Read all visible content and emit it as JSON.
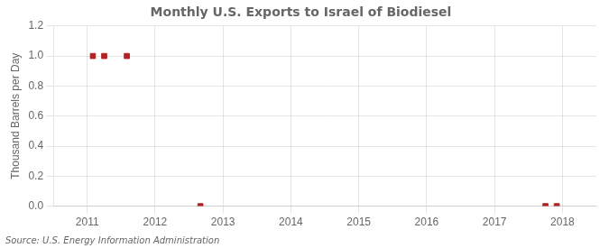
{
  "chart_data": {
    "type": "scatter",
    "title": "Monthly U.S. Exports to Israel of Biodiesel",
    "ylabel": "Thousand Barrels per Day",
    "annotations": [
      "Source: U.S. Energy Information Administration"
    ],
    "x": [
      2011.083,
      2011.25,
      2011.583,
      2012.667,
      2017.75,
      2017.917
    ],
    "values": [
      1.0,
      1.0,
      1.0,
      0.0,
      0.0,
      0.0
    ],
    "color": "#b22222",
    "marker": "square",
    "xlim": [
      2010.5,
      2018.5
    ],
    "xticks": [
      2011,
      2012,
      2013,
      2014,
      2015,
      2016,
      2017,
      2018
    ],
    "ylim": [
      0.0,
      1.2
    ],
    "yticks": [
      {
        "value": 0,
        "label": "0.0"
      },
      0.2,
      0.4,
      0.6,
      0.8,
      {
        "value": 1,
        "label": "1.0"
      },
      1.2
    ],
    "grid": true
  }
}
